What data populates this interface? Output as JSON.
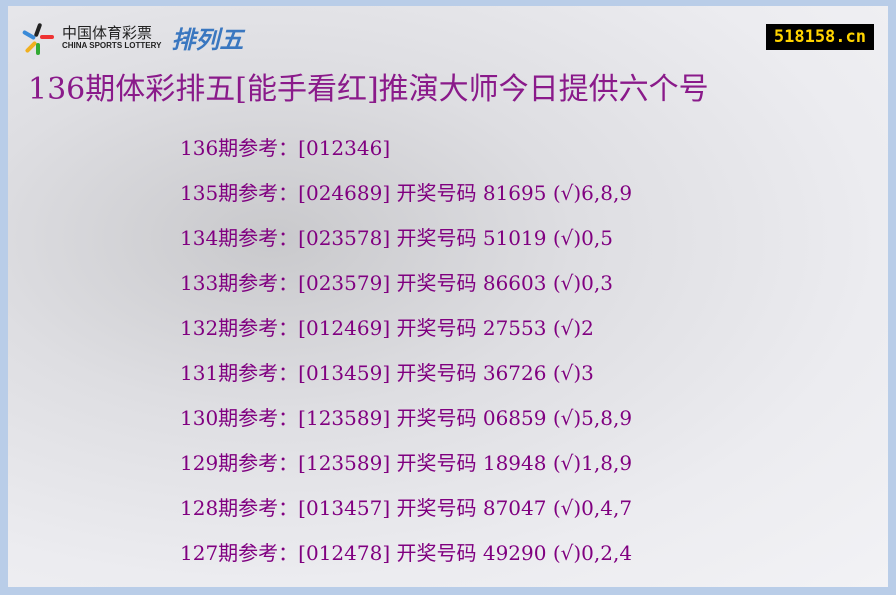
{
  "logo": {
    "cn": "中国体育彩票",
    "en": "CHINA SPORTS LOTTERY",
    "game": "排列五"
  },
  "site": "518158.cn",
  "title": "136期体彩排五[能手看红]推演大师今日提供六个号",
  "rows": [
    "136期参考：[012346]",
    "135期参考：[024689] 开奖号码 81695 (√)6,8,9",
    "134期参考：[023578] 开奖号码 51019 (√)0,5",
    "133期参考：[023579] 开奖号码 86603 (√)0,3",
    "132期参考：[012469] 开奖号码 27553 (√)2",
    "131期参考：[013459] 开奖号码 36726 (√)3",
    "130期参考：[123589] 开奖号码 06859 (√)5,8,9",
    "129期参考：[123589] 开奖号码 18948 (√)1,8,9",
    "128期参考：[013457] 开奖号码 87047 (√)0,4,7",
    "127期参考：[012478] 开奖号码 49290 (√)0,2,4"
  ],
  "colors": {
    "text": "#800080",
    "border": "#b9cde8",
    "badge_bg": "#000000",
    "badge_text": "#ffd400"
  }
}
